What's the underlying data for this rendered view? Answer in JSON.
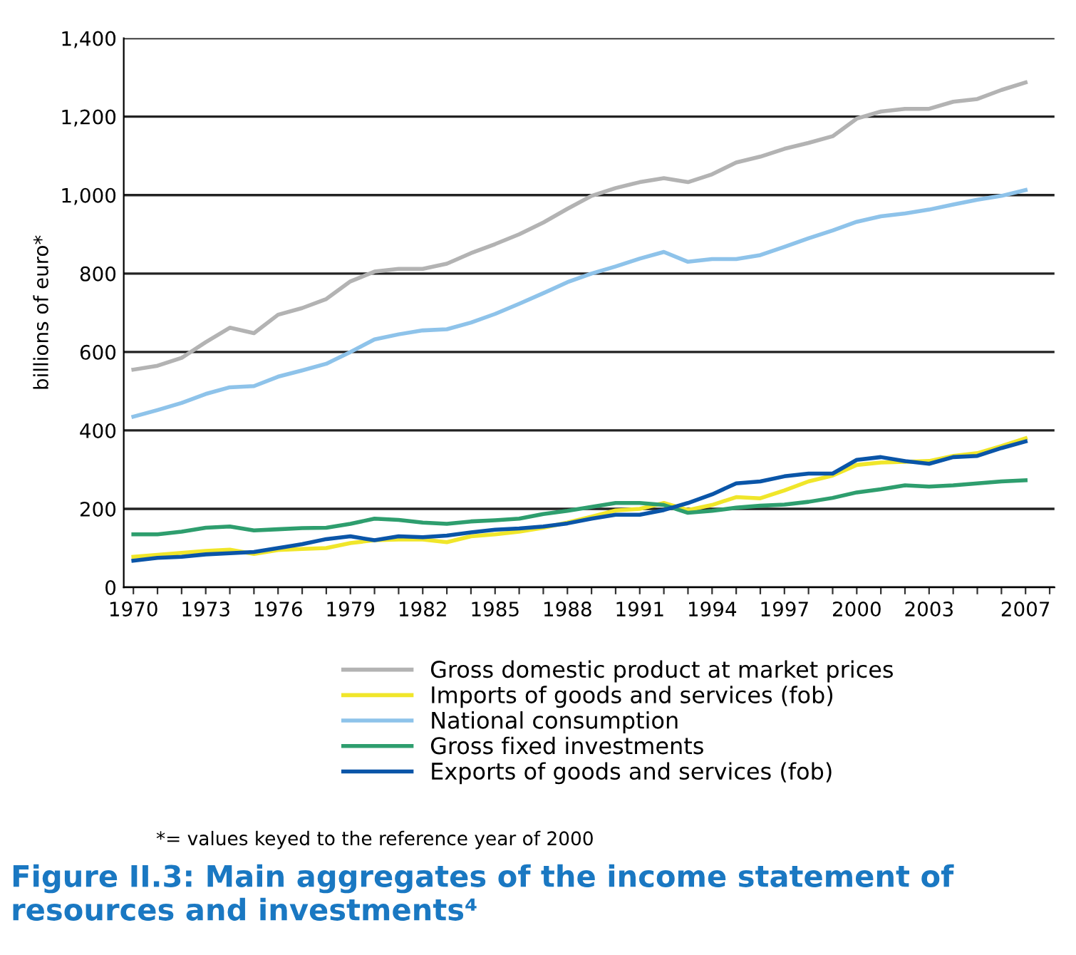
{
  "chart_data": {
    "type": "line",
    "title": "Figure II.3: Main aggregates of the income statement of resources and investments⁴",
    "ylabel": "billions of euro*",
    "annotations": [
      "*= values keyed to the reference year of 2000"
    ],
    "x": [
      1970,
      1971,
      1972,
      1973,
      1974,
      1975,
      1976,
      1977,
      1978,
      1979,
      1980,
      1981,
      1982,
      1983,
      1984,
      1985,
      1986,
      1987,
      1988,
      1989,
      1990,
      1991,
      1992,
      1993,
      1994,
      1995,
      1996,
      1997,
      1998,
      1999,
      2000,
      2001,
      2002,
      2003,
      2004,
      2005,
      2006,
      2007
    ],
    "series": [
      {
        "name": "Gross domestic product at market prices",
        "color": "#b3b3b3",
        "values": [
          555,
          565,
          585,
          625,
          662,
          648,
          695,
          712,
          735,
          780,
          805,
          812,
          812,
          825,
          852,
          875,
          900,
          930,
          965,
          998,
          1018,
          1033,
          1043,
          1033,
          1053,
          1083,
          1098,
          1118,
          1133,
          1150,
          1195,
          1213,
          1220,
          1220,
          1238,
          1245,
          1268,
          1287
        ]
      },
      {
        "name": "Imports of goods and services (fob)",
        "color": "#f0e62a",
        "values": [
          78,
          83,
          88,
          93,
          96,
          85,
          95,
          98,
          100,
          113,
          120,
          122,
          122,
          115,
          130,
          135,
          142,
          152,
          165,
          180,
          196,
          200,
          215,
          197,
          210,
          230,
          227,
          247,
          270,
          285,
          312,
          318,
          320,
          322,
          335,
          342,
          360,
          380
        ]
      },
      {
        "name": "National consumption",
        "color": "#8ec3ea",
        "values": [
          435,
          452,
          470,
          493,
          510,
          513,
          537,
          553,
          570,
          600,
          632,
          645,
          655,
          658,
          675,
          697,
          723,
          750,
          778,
          800,
          818,
          838,
          855,
          830,
          837,
          837,
          847,
          868,
          890,
          910,
          932,
          946,
          953,
          963,
          976,
          988,
          998,
          1013
        ]
      },
      {
        "name": "Gross fixed investments",
        "color": "#2e9e6e",
        "values": [
          135,
          135,
          142,
          152,
          155,
          145,
          148,
          151,
          152,
          162,
          175,
          172,
          165,
          162,
          168,
          171,
          175,
          187,
          195,
          205,
          215,
          215,
          210,
          190,
          195,
          203,
          208,
          211,
          218,
          228,
          242,
          250,
          260,
          257,
          260,
          265,
          270,
          273
        ]
      },
      {
        "name": "Exports of goods and services (fob)",
        "color": "#0a55a8",
        "values": [
          68,
          75,
          78,
          84,
          87,
          90,
          100,
          110,
          123,
          130,
          120,
          130,
          128,
          132,
          140,
          147,
          150,
          155,
          163,
          175,
          185,
          185,
          197,
          215,
          237,
          265,
          270,
          283,
          290,
          290,
          325,
          332,
          322,
          315,
          332,
          335,
          355,
          372
        ]
      }
    ],
    "xlim": [
      1969.6,
      2008.2
    ],
    "xticks": [
      {
        "value": 1970,
        "label": "1970"
      },
      {
        "value": 1971,
        "label": null
      },
      {
        "value": 1972,
        "label": null
      },
      {
        "value": 1973,
        "label": "1973"
      },
      {
        "value": 1974,
        "label": null
      },
      {
        "value": 1975,
        "label": null
      },
      {
        "value": 1976,
        "label": "1976"
      },
      {
        "value": 1977,
        "label": null
      },
      {
        "value": 1978,
        "label": null
      },
      {
        "value": 1979,
        "label": "1979"
      },
      {
        "value": 1980,
        "label": null
      },
      {
        "value": 1981,
        "label": null
      },
      {
        "value": 1982,
        "label": "1982"
      },
      {
        "value": 1983,
        "label": null
      },
      {
        "value": 1984,
        "label": null
      },
      {
        "value": 1985,
        "label": "1985"
      },
      {
        "value": 1986,
        "label": null
      },
      {
        "value": 1987,
        "label": null
      },
      {
        "value": 1988,
        "label": "1988"
      },
      {
        "value": 1989,
        "label": null
      },
      {
        "value": 1990,
        "label": null
      },
      {
        "value": 1991,
        "label": "1991"
      },
      {
        "value": 1992,
        "label": null
      },
      {
        "value": 1993,
        "label": null
      },
      {
        "value": 1994,
        "label": "1994"
      },
      {
        "value": 1995,
        "label": null
      },
      {
        "value": 1996,
        "label": null
      },
      {
        "value": 1997,
        "label": "1997"
      },
      {
        "value": 1998,
        "label": null
      },
      {
        "value": 1999,
        "label": null
      },
      {
        "value": 2000,
        "label": "2000"
      },
      {
        "value": 2001,
        "label": null
      },
      {
        "value": 2002,
        "label": null
      },
      {
        "value": 2003,
        "label": "2003"
      },
      {
        "value": 2004,
        "label": null
      },
      {
        "value": 2005,
        "label": null
      },
      {
        "value": 2006,
        "label": null
      },
      {
        "value": 2007,
        "label": "2007"
      },
      {
        "value": 2008,
        "label": null
      }
    ],
    "ylim": [
      0,
      1400
    ],
    "yticks": [
      0,
      200,
      400,
      600,
      800,
      {
        "value": 1000,
        "label": "1,000"
      },
      {
        "value": 1200,
        "label": "1,200"
      },
      {
        "value": 1400,
        "label": "1,400"
      }
    ],
    "grid": "y",
    "legend": "bottom",
    "marker": "none",
    "line_style": "solid"
  }
}
